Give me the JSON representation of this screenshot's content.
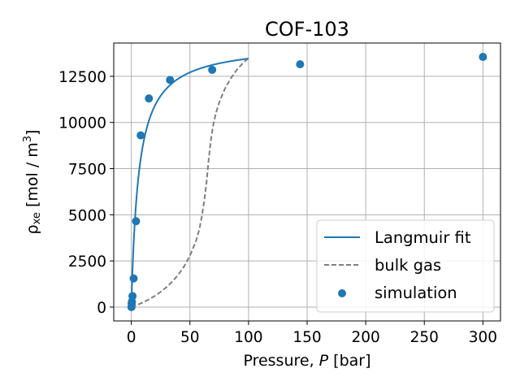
{
  "chart_data": {
    "type": "scatter",
    "title": "COF-103",
    "xlabel": {
      "prefix": "Pressure, ",
      "symbol": "P",
      "suffix": " [bar]"
    },
    "ylabel": {
      "base": "ρ",
      "subscript": "xe",
      "unit_open": " [mol / m",
      "unit_sup": "3",
      "unit_close": "]"
    },
    "xlim": [
      -15,
      315
    ],
    "ylim": [
      -750,
      14300
    ],
    "xticks": [
      0,
      50,
      100,
      150,
      200,
      250,
      300
    ],
    "yticks": [
      0,
      2500,
      5000,
      7500,
      10000,
      12500
    ],
    "grid": true,
    "legend_position": "lower-right",
    "colors": {
      "langmuir": "#1f77b4",
      "bulk_gas": "#7f7f7f",
      "simulation": "#1f77b4",
      "grid": "#b0b0b0",
      "axes": "#000000"
    },
    "series": [
      {
        "name": "Langmuir fit",
        "kind": "line",
        "model": {
          "q_sat": 14300,
          "K": 0.16,
          "p_min": 0.0,
          "p_max": 100.0
        }
      },
      {
        "name": "bulk gas",
        "kind": "dashed-line",
        "x": [
          0,
          5,
          10,
          15,
          20,
          25,
          30,
          35,
          40,
          45,
          50,
          55,
          58,
          60,
          62,
          64,
          66,
          68,
          70,
          72,
          74,
          76,
          78,
          80,
          85,
          90,
          95,
          100
        ],
        "y": [
          0,
          120,
          250,
          420,
          600,
          820,
          1080,
          1380,
          1750,
          2200,
          2780,
          3550,
          4200,
          4850,
          5650,
          6650,
          8000,
          9100,
          9900,
          10450,
          10900,
          11250,
          11550,
          11850,
          12400,
          12850,
          13200,
          13500
        ]
      },
      {
        "name": "simulation",
        "kind": "scatter",
        "x": [
          0.1,
          0.3,
          0.5,
          1,
          2,
          4,
          8,
          15,
          33,
          69,
          144,
          300
        ],
        "y": [
          0,
          200,
          300,
          600,
          1550,
          4650,
          9300,
          11300,
          12300,
          12850,
          13150,
          13550
        ]
      }
    ]
  }
}
